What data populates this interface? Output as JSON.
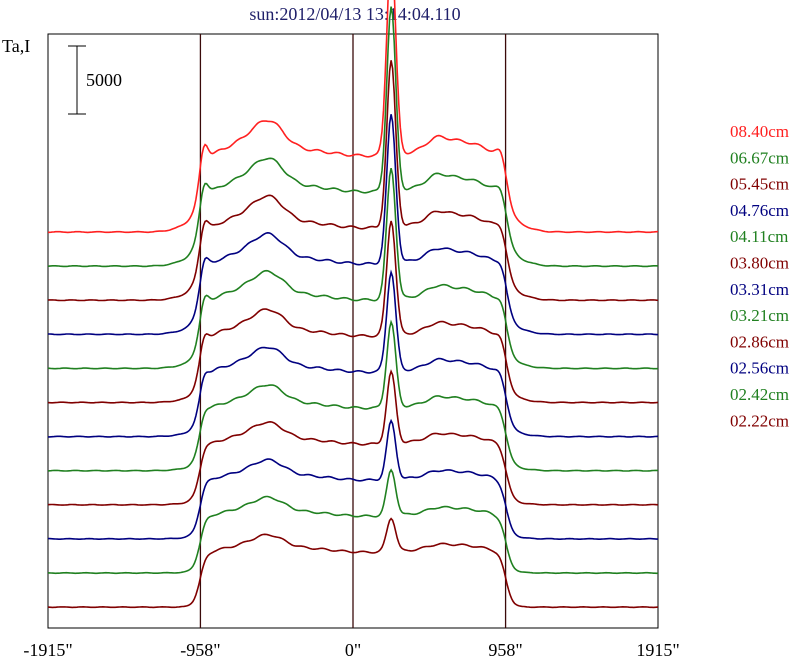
{
  "chart_data": {
    "type": "line",
    "title": "sun:2012/04/13 13:14:04.110",
    "ylabel": "Ta,I",
    "scale_bar_label": "5000",
    "scale_bar_value": 5000,
    "x_tick_labels": [
      "-1915\"",
      "-958\"",
      "0\"",
      "958\"",
      "1915\""
    ],
    "x_ticks": [
      -1915,
      -958,
      0,
      958,
      1915
    ],
    "xlim": [
      -1915,
      1915
    ],
    "vertical_lines": [
      -958,
      0,
      958
    ],
    "grid": false,
    "legend_position": "right",
    "series": [
      {
        "name": "08.40cm",
        "color": "#ff2020"
      },
      {
        "name": "06.67cm",
        "color": "#208020"
      },
      {
        "name": "05.45cm",
        "color": "#800000"
      },
      {
        "name": "04.76cm",
        "color": "#000080"
      },
      {
        "name": "04.11cm",
        "color": "#208020"
      },
      {
        "name": "03.80cm",
        "color": "#800000"
      },
      {
        "name": "03.31cm",
        "color": "#000080"
      },
      {
        "name": "03.21cm",
        "color": "#208020"
      },
      {
        "name": "02.86cm",
        "color": "#800000"
      },
      {
        "name": "02.56cm",
        "color": "#000080"
      },
      {
        "name": "02.42cm",
        "color": "#208020"
      },
      {
        "name": "02.22cm",
        "color": "#800000"
      }
    ],
    "profile_shape": {
      "peak_x": 240,
      "peak_ratio_top": 2.6,
      "peak_ratio_bottom": 0.6
    }
  }
}
